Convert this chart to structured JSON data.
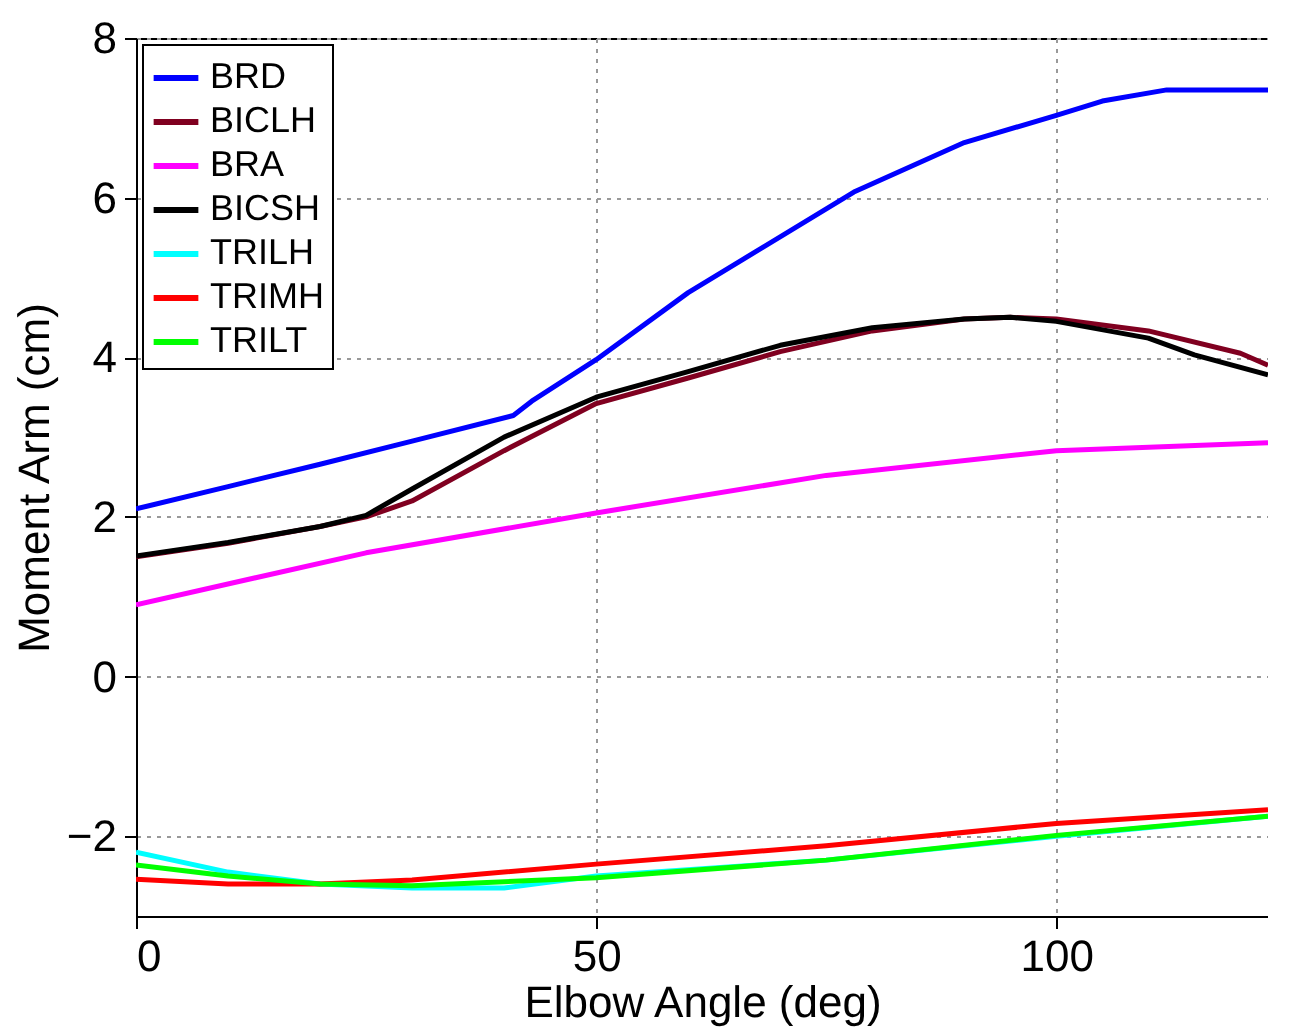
{
  "chart_data": {
    "type": "line",
    "xlabel": "Elbow Angle (deg)",
    "ylabel": "Moment Arm (cm)",
    "xlim": [
      0,
      123
    ],
    "ylim": [
      -3,
      8
    ],
    "xticks": [
      0,
      50,
      100
    ],
    "yticks": [
      -2,
      0,
      2,
      4,
      6,
      8
    ],
    "grid": true,
    "legend": "top left",
    "line_style": "solid",
    "marker": "none",
    "series": [
      {
        "name": "BRD",
        "color": "#0000ff",
        "x": [
          0,
          10,
          20,
          30,
          41,
          43,
          50,
          60,
          66,
          78,
          90,
          100,
          105,
          112,
          123
        ],
        "values": [
          2.1,
          2.38,
          2.66,
          2.95,
          3.27,
          3.45,
          3.97,
          4.81,
          5.23,
          6.07,
          6.69,
          7.03,
          7.21,
          7.35,
          7.35
        ]
      },
      {
        "name": "BICLH",
        "color": "#800020",
        "x": [
          0,
          10,
          20,
          25,
          30,
          40,
          50,
          60,
          70,
          80,
          90,
          95,
          100,
          110,
          120,
          123
        ],
        "values": [
          1.5,
          1.67,
          1.88,
          2.0,
          2.2,
          2.83,
          3.42,
          3.74,
          4.07,
          4.33,
          4.48,
          4.5,
          4.48,
          4.33,
          4.05,
          3.9
        ]
      },
      {
        "name": "BRA",
        "color": "#ff00ff",
        "x": [
          0,
          25,
          50,
          75,
          100,
          123
        ],
        "values": [
          0.9,
          1.55,
          2.05,
          2.52,
          2.83,
          2.93
        ]
      },
      {
        "name": "BICSH",
        "color": "#000000",
        "x": [
          0,
          10,
          20,
          25,
          30,
          40,
          50,
          60,
          70,
          80,
          90,
          95,
          100,
          110,
          115,
          123
        ],
        "values": [
          1.51,
          1.68,
          1.88,
          2.02,
          2.35,
          3.0,
          3.5,
          3.82,
          4.15,
          4.37,
          4.48,
          4.5,
          4.45,
          4.24,
          4.03,
          3.78
        ]
      },
      {
        "name": "TRILH",
        "color": "#00ffff",
        "x": [
          0,
          10,
          20,
          30,
          40,
          50,
          75,
          100,
          123
        ],
        "values": [
          -2.2,
          -2.45,
          -2.6,
          -2.65,
          -2.65,
          -2.5,
          -2.3,
          -2.0,
          -1.75
        ]
      },
      {
        "name": "TRIMH",
        "color": "#ff0000",
        "x": [
          0,
          10,
          20,
          30,
          50,
          75,
          100,
          123
        ],
        "values": [
          -2.54,
          -2.6,
          -2.6,
          -2.55,
          -2.35,
          -2.12,
          -1.84,
          -1.67
        ]
      },
      {
        "name": "TRILT",
        "color": "#00ff00",
        "x": [
          0,
          10,
          20,
          30,
          50,
          75,
          100,
          123
        ],
        "values": [
          -2.36,
          -2.5,
          -2.6,
          -2.62,
          -2.52,
          -2.3,
          -1.99,
          -1.75
        ]
      }
    ]
  }
}
